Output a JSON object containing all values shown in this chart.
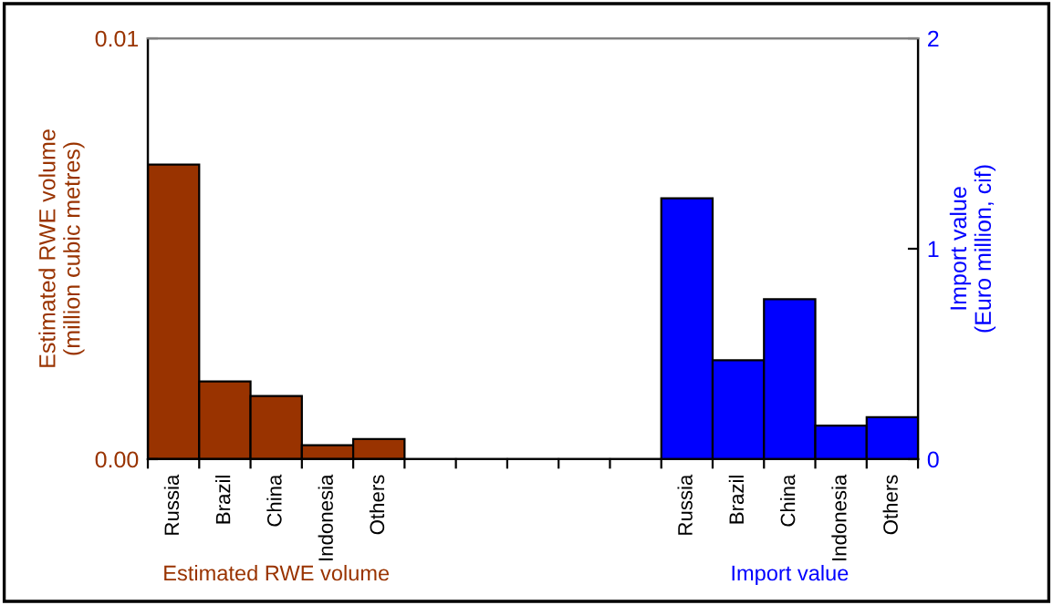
{
  "chart_data": {
    "type": "bar",
    "ylabel": "Estimated RWE volume\n(million cubic metres)",
    "y2label": "Import value\n(Euro million, cif)",
    "categories": [
      "Russia",
      "Brazil",
      "China",
      "Indonesia",
      "Others",
      null,
      null,
      null,
      null,
      null,
      "Russia",
      "Brazil",
      "China",
      "Indonesia",
      "Others"
    ],
    "series": [
      {
        "name": "Estimated RWE volume",
        "color": "#993300",
        "values": [
          0.007,
          0.00185,
          0.0015,
          0.00033,
          0.00048,
          null,
          null,
          null,
          null,
          null,
          null,
          null,
          null,
          null,
          null
        ]
      },
      {
        "name": "Import value",
        "color": "#0000ff",
        "axis": "y2",
        "values": [
          null,
          null,
          null,
          null,
          null,
          null,
          null,
          null,
          null,
          null,
          1.24,
          0.47,
          0.76,
          0.16,
          0.2
        ]
      }
    ],
    "ylim": [
      0,
      0.01
    ],
    "yticks": [
      {
        "value": 0,
        "label": "0.00"
      },
      {
        "value": 0.01,
        "label": "0.01"
      }
    ],
    "y2lim": [
      0,
      2
    ],
    "y2ticks": [
      0,
      1,
      2
    ],
    "grid": false,
    "legend": false
  }
}
